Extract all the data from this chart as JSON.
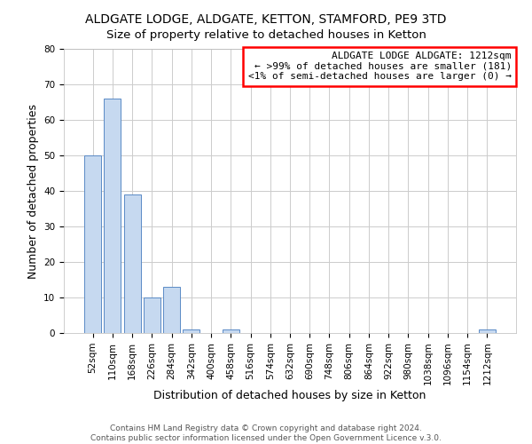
{
  "title": "ALDGATE LODGE, ALDGATE, KETTON, STAMFORD, PE9 3TD",
  "subtitle": "Size of property relative to detached houses in Ketton",
  "xlabel": "Distribution of detached houses by size in Ketton",
  "ylabel": "Number of detached properties",
  "bar_color": "#c6d9f0",
  "bar_edge_color": "#5a8ac6",
  "categories": [
    "52sqm",
    "110sqm",
    "168sqm",
    "226sqm",
    "284sqm",
    "342sqm",
    "400sqm",
    "458sqm",
    "516sqm",
    "574sqm",
    "632sqm",
    "690sqm",
    "748sqm",
    "806sqm",
    "864sqm",
    "922sqm",
    "980sqm",
    "1038sqm",
    "1096sqm",
    "1154sqm",
    "1212sqm"
  ],
  "values": [
    50,
    66,
    39,
    10,
    13,
    1,
    0,
    1,
    0,
    0,
    0,
    0,
    0,
    0,
    0,
    0,
    0,
    0,
    0,
    0,
    1
  ],
  "ylim": [
    0,
    80
  ],
  "yticks": [
    0,
    10,
    20,
    30,
    40,
    50,
    60,
    70,
    80
  ],
  "annotation_title": "ALDGATE LODGE ALDGATE: 1212sqm",
  "annotation_line1": "← >99% of detached houses are smaller (181)",
  "annotation_line2": "<1% of semi-detached houses are larger (0) →",
  "annotation_box_color": "#ff0000",
  "footer_line1": "Contains HM Land Registry data © Crown copyright and database right 2024.",
  "footer_line2": "Contains public sector information licensed under the Open Government Licence v.3.0.",
  "background_color": "#ffffff",
  "grid_color": "#cccccc",
  "title_fontsize": 10,
  "annotation_fontsize": 8,
  "footer_fontsize": 6.5,
  "axis_label_fontsize": 9,
  "tick_fontsize": 7.5
}
